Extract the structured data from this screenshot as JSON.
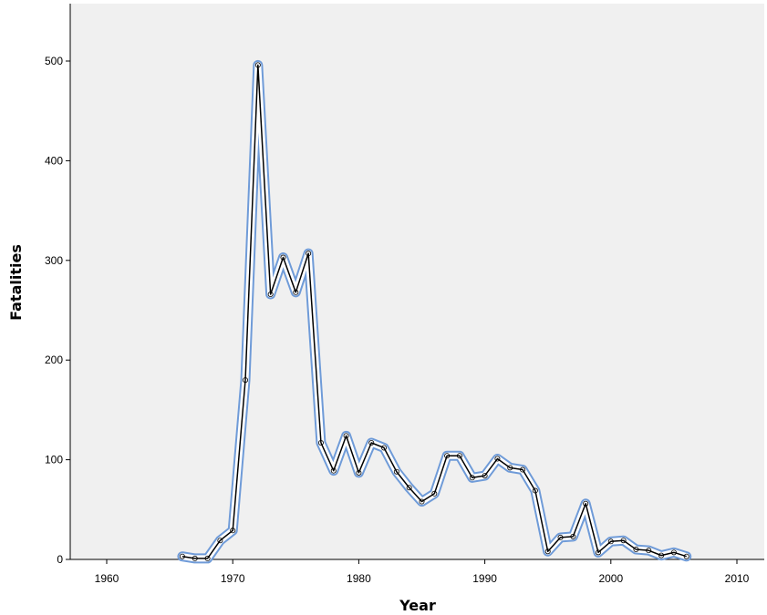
{
  "chart_data": {
    "type": "line",
    "xlabel": "Year",
    "ylabel": "Fatalities",
    "xlim": [
      1955,
      2012
    ],
    "ylim": [
      0,
      550
    ],
    "x_ticks": [
      1960,
      1970,
      1980,
      1990,
      2000,
      2010
    ],
    "y_ticks": [
      0,
      100,
      200,
      300,
      400,
      500
    ],
    "grid": false,
    "background": "#f0f0f0",
    "colors": {
      "fit_line": "#6f9bd8",
      "data_line": "#000000"
    },
    "series": [
      {
        "x": [
          1966,
          1967,
          1968,
          1969,
          1970,
          1971,
          1972,
          1973,
          1974,
          1975,
          1976,
          1977,
          1978,
          1979,
          1980,
          1981,
          1982,
          1983,
          1984,
          1985,
          1986,
          1987,
          1988,
          1989,
          1990,
          1991,
          1992,
          1993,
          1994,
          1995,
          1996,
          1997,
          1998,
          1999,
          2000,
          2001,
          2002,
          2003,
          2004,
          2005,
          2006
        ],
        "values": [
          3,
          1,
          1,
          19,
          29,
          180,
          496,
          266,
          303,
          268,
          307,
          117,
          89,
          124,
          87,
          117,
          112,
          88,
          72,
          58,
          66,
          104,
          104,
          82,
          84,
          101,
          92,
          90,
          69,
          8,
          22,
          23,
          56,
          7,
          18,
          19,
          10,
          9,
          4,
          7,
          3
        ]
      }
    ]
  }
}
